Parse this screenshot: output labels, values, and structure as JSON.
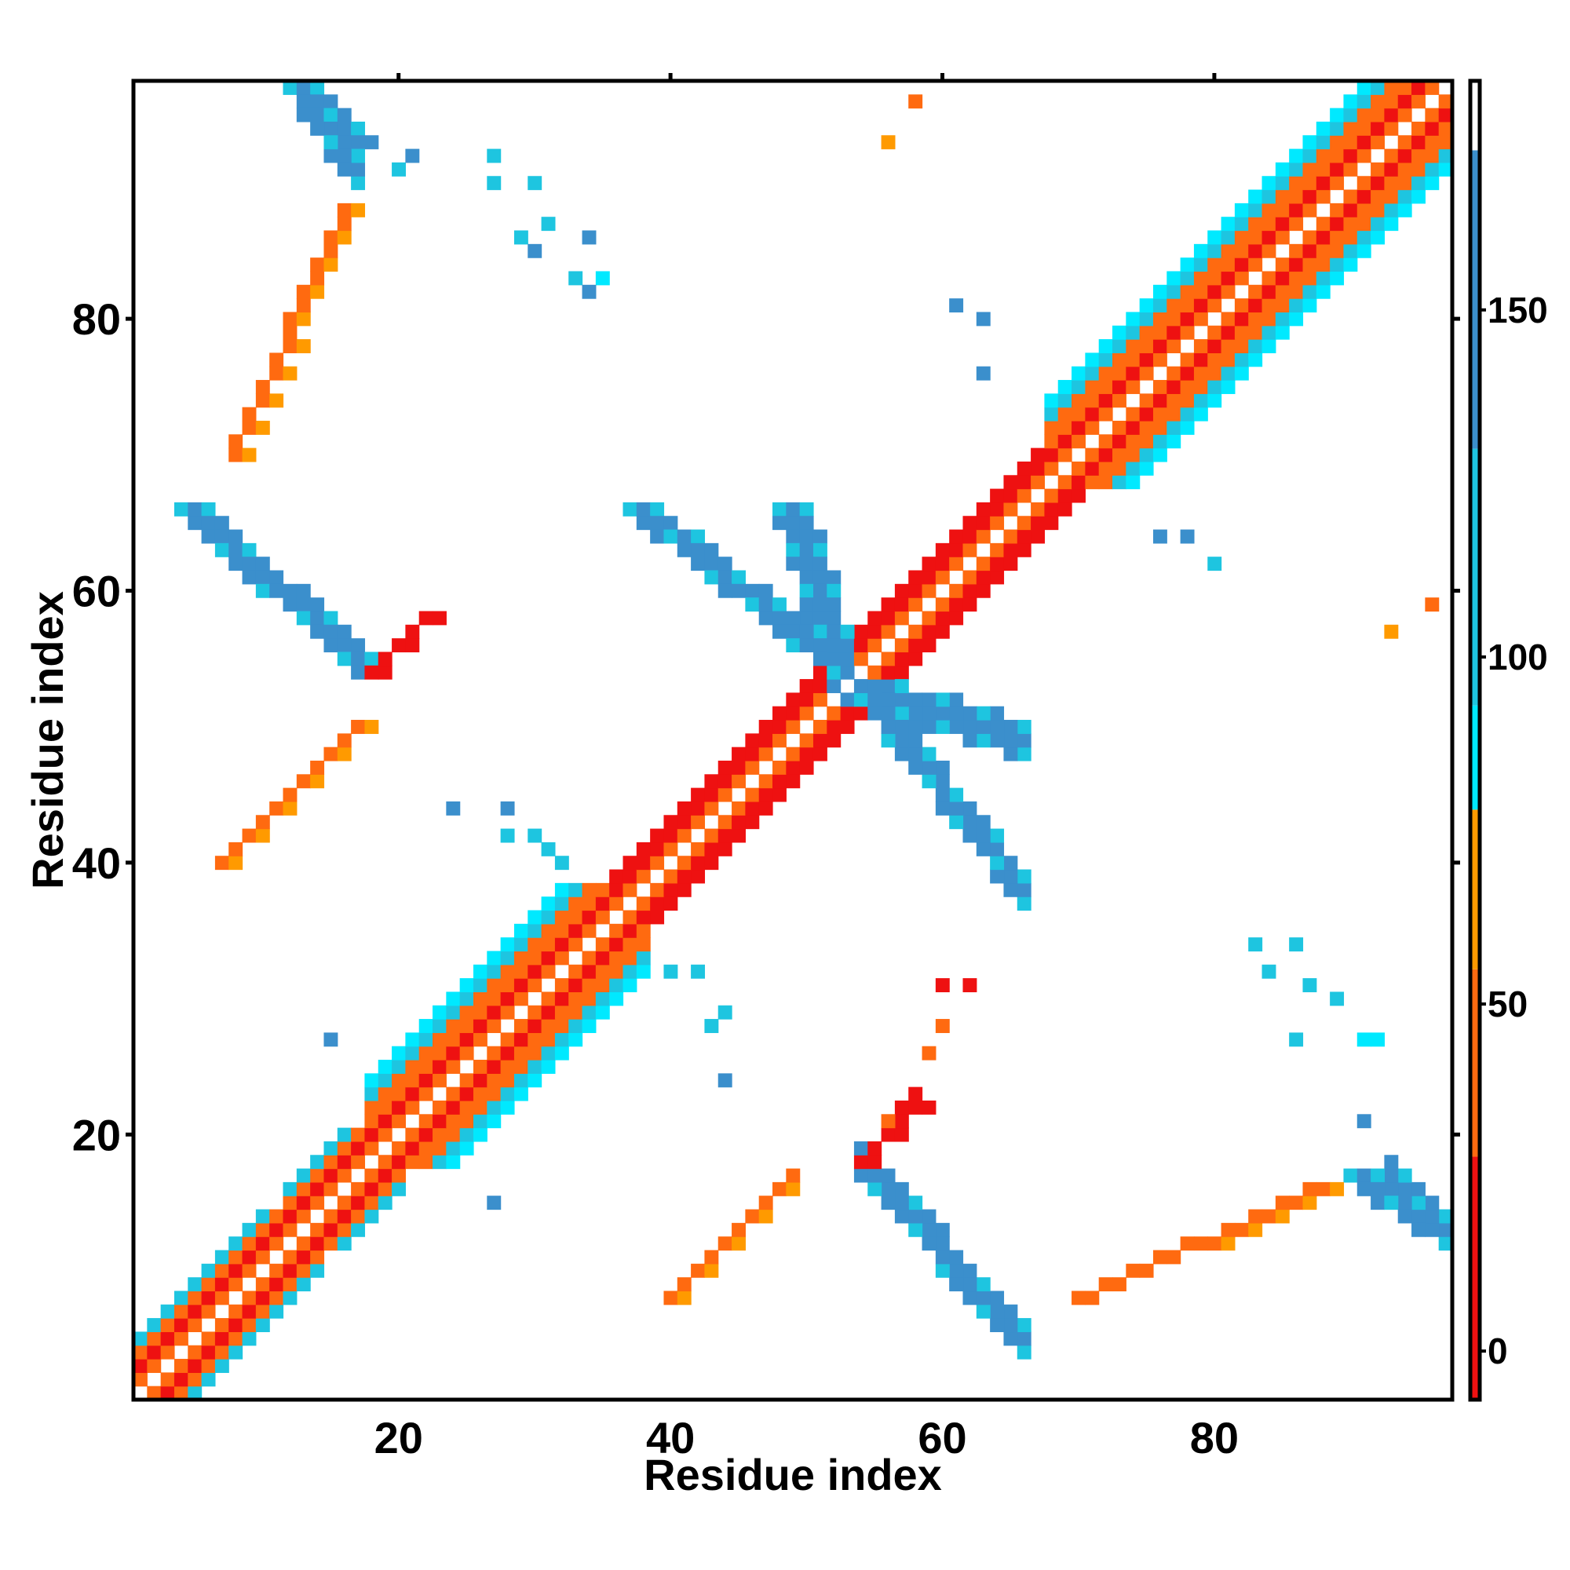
{
  "chart_data": {
    "type": "heatmap",
    "title": "",
    "xlabel": "Residue index",
    "ylabel": "Residue index",
    "xlim": [
      0.5,
      97.5
    ],
    "ylim": [
      0.5,
      97.5
    ],
    "x_ticks": [
      20,
      40,
      60,
      80
    ],
    "y_ticks": [
      20,
      40,
      60,
      80
    ],
    "grid": false,
    "colorbar": {
      "ticks": [
        0,
        50,
        100,
        150
      ],
      "range": [
        -7,
        183
      ],
      "segments": [
        {
          "from": -7,
          "to": 28,
          "color": "#ee1111"
        },
        {
          "from": 28,
          "to": 55,
          "color": "#ff6a10"
        },
        {
          "from": 55,
          "to": 78,
          "color": "#ff9a00"
        },
        {
          "from": 78,
          "to": 93,
          "color": "#00e9ff"
        },
        {
          "from": 93,
          "to": 130,
          "color": "#1ec5e0"
        },
        {
          "from": 130,
          "to": 173,
          "color": "#3b8fcc"
        },
        {
          "from": 173,
          "to": 183,
          "color": "#ffffff"
        }
      ]
    },
    "colors": {
      "red": "#ee1111",
      "orange": "#ff6a10",
      "amber": "#ff9a00",
      "cyan": "#00e9ff",
      "sky": "#1ec5e0",
      "blue": "#3b8fcc",
      "navy": "#4a78b8"
    },
    "value_by_class": {
      "red": 10,
      "orange": 40,
      "amber": 65,
      "cyan": 85,
      "sky": 110,
      "blue": 150
    },
    "diagonal": {
      "from": 1,
      "to": 97
    },
    "blocks": [
      {
        "i": [
          1,
          12
        ],
        "j": [
          1,
          12
        ],
        "band": "helix-short"
      },
      {
        "i": [
          12,
          18
        ],
        "j": [
          12,
          18
        ],
        "band": "helix-short"
      },
      {
        "i": [
          18,
          36
        ],
        "j": [
          18,
          36
        ],
        "band": "helix"
      },
      {
        "i": [
          36,
          54
        ],
        "j": [
          36,
          54
        ],
        "band": "strand"
      },
      {
        "i": [
          54,
          68
        ],
        "j": [
          54,
          68
        ],
        "band": "strand"
      },
      {
        "i": [
          68,
          97
        ],
        "j": [
          68,
          97
        ],
        "band": "helix"
      }
    ],
    "antiparallel_contacts": [
      {
        "i": [
          49,
          53
        ],
        "j": [
          53,
          66
        ],
        "class": "blue"
      },
      {
        "i": [
          38,
          53
        ],
        "j": [
          54,
          66
        ],
        "class": "blue"
      },
      {
        "i": [
          5,
          18
        ],
        "j": [
          54,
          66
        ],
        "class": "blue"
      },
      {
        "i": [
          13,
          17
        ],
        "j": [
          93,
          97
        ],
        "class": "blue"
      },
      {
        "i": [
          91,
          96
        ],
        "j": [
          13,
          17
        ],
        "class": "blue"
      }
    ],
    "loop_contacts": [
      {
        "i": [
          7,
          17
        ],
        "j": [
          40,
          50
        ],
        "class": "orange"
      },
      {
        "i": [
          40,
          49
        ],
        "j": [
          8,
          17
        ],
        "class": "orange"
      },
      {
        "i": [
          8,
          16
        ],
        "j": [
          70,
          88
        ],
        "class": "orange"
      },
      {
        "i": [
          70,
          88
        ],
        "j": [
          8,
          16
        ],
        "class": "orange"
      },
      {
        "i": [
          18,
          22
        ],
        "j": [
          54,
          58
        ],
        "class": "red"
      },
      {
        "i": [
          54,
          58
        ],
        "j": [
          18,
          22
        ],
        "class": "red"
      }
    ],
    "scattered_contacts": [
      {
        "i": 20,
        "j": 91,
        "class": "sky"
      },
      {
        "i": 21,
        "j": 92,
        "class": "blue"
      },
      {
        "i": 27,
        "j": 90,
        "class": "sky"
      },
      {
        "i": 27,
        "j": 92,
        "class": "sky"
      },
      {
        "i": 30,
        "j": 90,
        "class": "sky"
      },
      {
        "i": 29,
        "j": 86,
        "class": "sky"
      },
      {
        "i": 30,
        "j": 85,
        "class": "blue"
      },
      {
        "i": 31,
        "j": 87,
        "class": "sky"
      },
      {
        "i": 34,
        "j": 86,
        "class": "blue"
      },
      {
        "i": 33,
        "j": 83,
        "class": "sky"
      },
      {
        "i": 35,
        "j": 83,
        "class": "cyan"
      },
      {
        "i": 34,
        "j": 82,
        "class": "blue"
      },
      {
        "i": 61,
        "j": 81,
        "class": "blue"
      },
      {
        "i": 63,
        "j": 80,
        "class": "blue"
      },
      {
        "i": 63,
        "j": 76,
        "class": "blue"
      },
      {
        "i": 76,
        "j": 64,
        "class": "blue"
      },
      {
        "i": 78,
        "j": 64,
        "class": "blue"
      },
      {
        "i": 80,
        "j": 62,
        "class": "sky"
      },
      {
        "i": 93,
        "j": 57,
        "class": "amber"
      },
      {
        "i": 96,
        "j": 59,
        "class": "orange"
      },
      {
        "i": 58,
        "j": 96,
        "class": "orange"
      },
      {
        "i": 56,
        "j": 93,
        "class": "amber"
      },
      {
        "i": 24,
        "j": 44,
        "class": "blue"
      },
      {
        "i": 28,
        "j": 44,
        "class": "blue"
      },
      {
        "i": 28,
        "j": 42,
        "class": "sky"
      },
      {
        "i": 30,
        "j": 42,
        "class": "sky"
      },
      {
        "i": 31,
        "j": 41,
        "class": "sky"
      },
      {
        "i": 32,
        "j": 40,
        "class": "sky"
      },
      {
        "i": 40,
        "j": 32,
        "class": "sky"
      },
      {
        "i": 42,
        "j": 32,
        "class": "sky"
      },
      {
        "i": 44,
        "j": 29,
        "class": "sky"
      },
      {
        "i": 43,
        "j": 28,
        "class": "sky"
      },
      {
        "i": 44,
        "j": 24,
        "class": "blue"
      },
      {
        "i": 27,
        "j": 15,
        "class": "blue"
      },
      {
        "i": 15,
        "j": 27,
        "class": "blue"
      },
      {
        "i": 60,
        "j": 31,
        "class": "red"
      },
      {
        "i": 62,
        "j": 31,
        "class": "red"
      },
      {
        "i": 60,
        "j": 28,
        "class": "orange"
      },
      {
        "i": 59,
        "j": 26,
        "class": "orange"
      },
      {
        "i": 58,
        "j": 23,
        "class": "red"
      },
      {
        "i": 57,
        "j": 22,
        "class": "red"
      },
      {
        "i": 56,
        "j": 21,
        "class": "orange"
      },
      {
        "i": 83,
        "j": 34,
        "class": "sky"
      },
      {
        "i": 84,
        "j": 32,
        "class": "sky"
      },
      {
        "i": 86,
        "j": 34,
        "class": "sky"
      },
      {
        "i": 87,
        "j": 31,
        "class": "sky"
      },
      {
        "i": 89,
        "j": 30,
        "class": "sky"
      },
      {
        "i": 91,
        "j": 27,
        "class": "cyan"
      },
      {
        "i": 92,
        "j": 27,
        "class": "cyan"
      },
      {
        "i": 91,
        "j": 21,
        "class": "blue"
      },
      {
        "i": 86,
        "j": 27,
        "class": "sky"
      }
    ]
  }
}
